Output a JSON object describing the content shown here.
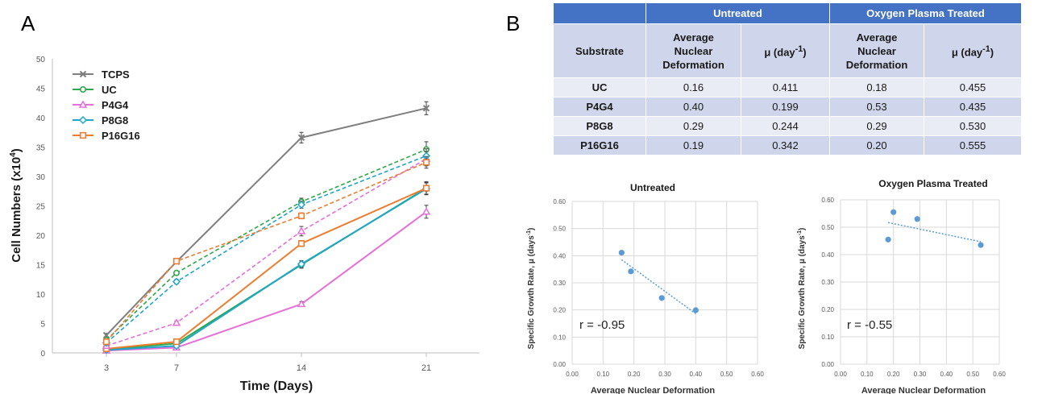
{
  "panel_labels": {
    "a": "A",
    "b": "B"
  },
  "table": {
    "group_headers": [
      "Untreated",
      "Oxygen Plasma Treated"
    ],
    "column_headers": {
      "substrate": "Substrate",
      "deformation_lines": [
        "Average",
        "Nuclear",
        "Deformation"
      ],
      "rate_prefix": "μ (day",
      "rate_sup": "-1",
      "rate_suffix": ")"
    },
    "rows": [
      {
        "substrate": "UC",
        "untreated_def": "0.16",
        "untreated_mu": "0.411",
        "treated_def": "0.18",
        "treated_mu": "0.455"
      },
      {
        "substrate": "P4G4",
        "untreated_def": "0.40",
        "untreated_mu": "0.199",
        "treated_def": "0.53",
        "treated_mu": "0.435"
      },
      {
        "substrate": "P8G8",
        "untreated_def": "0.29",
        "untreated_mu": "0.244",
        "treated_def": "0.29",
        "treated_mu": "0.530"
      },
      {
        "substrate": "P16G16",
        "untreated_def": "0.19",
        "untreated_mu": "0.342",
        "treated_def": "0.20",
        "treated_mu": "0.555"
      }
    ]
  },
  "chart_data": [
    {
      "type": "line",
      "xlabel": "Time (Days)",
      "ylabel_prefix": "Cell Numbers (x10",
      "ylabel_sup": "4",
      "ylabel_suffix": ")",
      "x": [
        3,
        7,
        14,
        21
      ],
      "categories": [
        "3",
        "7",
        "14",
        "21"
      ],
      "ylim": [
        0,
        50
      ],
      "yticks": [
        0,
        5,
        10,
        15,
        20,
        25,
        30,
        35,
        40,
        45,
        50
      ],
      "grid": false,
      "legend_position": "top-left",
      "series": [
        {
          "name": "TCPS",
          "color": "#7f7f7f",
          "marker": "x",
          "style": "solid",
          "values": [
            3.0,
            15.5,
            36.6,
            41.6
          ],
          "errors": [
            0.3,
            0.3,
            0.9,
            1.1
          ]
        },
        {
          "name": "UC",
          "color": "#2ea84a",
          "marker": "circle",
          "style": "solid",
          "values": [
            0.6,
            1.6,
            15.0,
            28.0
          ],
          "errors": [
            0.2,
            0.2,
            0.6,
            1.0
          ]
        },
        {
          "name": "P4G4",
          "color": "#e76fd8",
          "marker": "triangle",
          "style": "solid",
          "values": [
            0.4,
            0.9,
            8.3,
            24.0
          ],
          "errors": [
            0.2,
            0.2,
            0.4,
            1.1
          ]
        },
        {
          "name": "P8G8",
          "color": "#1fa6c9",
          "marker": "diamond",
          "style": "solid",
          "values": [
            0.5,
            1.2,
            15.1,
            27.9
          ],
          "errors": [
            0.2,
            0.2,
            0.6,
            1.0
          ]
        },
        {
          "name": "P16G16",
          "color": "#ed7d31",
          "marker": "square",
          "style": "solid",
          "values": [
            0.7,
            1.9,
            18.6,
            28.0
          ],
          "errors": [
            0.2,
            0.2,
            0.5,
            1.1
          ]
        },
        {
          "name": "UC",
          "color": "#2ea84a",
          "marker": "circle",
          "style": "dashed",
          "values": [
            2.2,
            13.6,
            25.7,
            34.6
          ],
          "errors": [
            0.2,
            0.3,
            0.6,
            1.3
          ]
        },
        {
          "name": "P4G4",
          "color": "#e76fd8",
          "marker": "triangle",
          "style": "dashed",
          "values": [
            1.2,
            5.1,
            20.7,
            33.0
          ],
          "errors": [
            0.2,
            0.3,
            0.8,
            1.2
          ]
        },
        {
          "name": "P8G8",
          "color": "#1fa6c9",
          "marker": "diamond",
          "style": "dashed",
          "values": [
            1.7,
            12.1,
            25.2,
            33.5
          ],
          "errors": [
            0.2,
            0.4,
            0.6,
            1.2
          ]
        },
        {
          "name": "P16G16",
          "color": "#ed7d31",
          "marker": "square",
          "style": "dashed",
          "values": [
            1.9,
            15.6,
            23.3,
            32.4
          ],
          "errors": [
            0.2,
            0.3,
            0.5,
            1.0
          ]
        }
      ]
    },
    {
      "type": "scatter",
      "title": "Untreated",
      "xlabel": "Average Nuclear Deformation",
      "ylabel_prefix": "Specific Growth Rate, μ (days",
      "ylabel_sup": "-1",
      "ylabel_suffix": ")",
      "xlim": [
        0,
        0.6
      ],
      "ylim": [
        0,
        0.6
      ],
      "xticks": [
        "0.00",
        "0.10",
        "0.20",
        "0.30",
        "0.40",
        "0.50",
        "0.60"
      ],
      "yticks": [
        "0.00",
        "0.10",
        "0.20",
        "0.30",
        "0.40",
        "0.50",
        "0.60"
      ],
      "x": [
        0.16,
        0.4,
        0.29,
        0.19
      ],
      "y": [
        0.411,
        0.199,
        0.244,
        0.342
      ],
      "trendline": {
        "x": [
          0.16,
          0.4
        ],
        "y": [
          0.385,
          0.186
        ]
      },
      "annotation": "r = -0.95",
      "color": "#5b9bd5",
      "grid": true
    },
    {
      "type": "scatter",
      "title": "Oxygen Plasma Treated",
      "xlabel": "Average Nuclear Deformation",
      "ylabel_prefix": "Specific Growth Rate, μ (days",
      "ylabel_sup": "-1",
      "ylabel_suffix": ")",
      "xlim": [
        0,
        0.6
      ],
      "ylim": [
        0,
        0.6
      ],
      "xticks": [
        "0.00",
        "0.10",
        "0.20",
        "0.30",
        "0.40",
        "0.50",
        "0.60"
      ],
      "yticks": [
        "0.00",
        "0.10",
        "0.20",
        "0.30",
        "0.40",
        "0.50",
        "0.60"
      ],
      "x": [
        0.18,
        0.53,
        0.29,
        0.2
      ],
      "y": [
        0.455,
        0.435,
        0.53,
        0.555
      ],
      "trendline": {
        "x": [
          0.18,
          0.53
        ],
        "y": [
          0.517,
          0.447
        ]
      },
      "annotation": "r = -0.55",
      "color": "#5b9bd5",
      "grid": true
    }
  ]
}
